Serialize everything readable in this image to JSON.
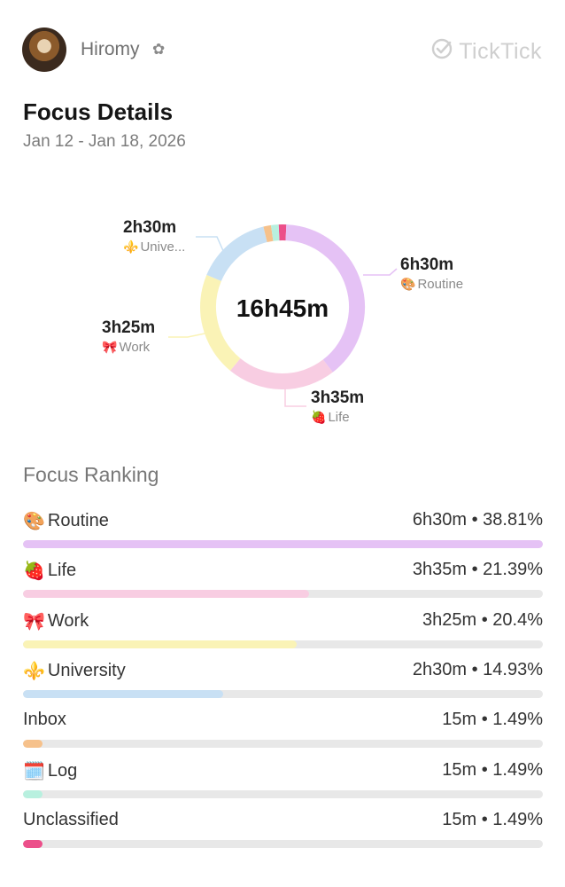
{
  "header": {
    "username": "Hiromy",
    "username_icon": "flower-icon",
    "brand_name": "TickTick",
    "brand_icon": "check-circle-icon"
  },
  "page": {
    "title": "Focus Details",
    "date_range": "Jan 12 - Jan 18, 2026"
  },
  "chart_data": {
    "type": "pie",
    "center_label": "16h45m",
    "series": [
      {
        "name": "Routine",
        "time": "6h30m",
        "emoji": "🎨",
        "percent": 38.81,
        "color": "#e5c2f5"
      },
      {
        "name": "Life",
        "time": "3h35m",
        "emoji": "🍓",
        "percent": 21.39,
        "color": "#f8cde2"
      },
      {
        "name": "Work",
        "time": "3h25m",
        "emoji": "🎀",
        "percent": 20.4,
        "color": "#faf3b6"
      },
      {
        "name": "University",
        "time": "2h30m",
        "emoji": "⚜️",
        "percent": 14.93,
        "color": "#c8e0f4"
      },
      {
        "name": "Inbox",
        "time": "15m",
        "emoji": "",
        "percent": 1.49,
        "color": "#f6c18b"
      },
      {
        "name": "Log",
        "time": "15m",
        "emoji": "🗓️",
        "percent": 1.49,
        "color": "#b8f0df"
      },
      {
        "name": "Unclassified",
        "time": "15m",
        "emoji": "",
        "percent": 1.49,
        "color": "#ec4f8a"
      }
    ],
    "callouts": [
      {
        "time": "6h30m",
        "name": "Routine",
        "emoji": "🎨"
      },
      {
        "time": "3h35m",
        "name": "Life",
        "emoji": "🍓"
      },
      {
        "time": "3h25m",
        "name": "Work",
        "emoji": "🎀"
      },
      {
        "time": "2h30m",
        "name": "Unive...",
        "emoji": "⚜️"
      }
    ]
  },
  "ranking": {
    "title": "Focus Ranking",
    "items": [
      {
        "name": "Routine",
        "emoji": "🎨",
        "value": "6h30m • 38.81%",
        "fraction": 1.0,
        "color": "#e5c2f5"
      },
      {
        "name": "Life",
        "emoji": "🍓",
        "value": "3h35m • 21.39%",
        "fraction": 0.551,
        "color": "#f8cde2"
      },
      {
        "name": "Work",
        "emoji": "🎀",
        "value": "3h25m • 20.4%",
        "fraction": 0.526,
        "color": "#faf3b6"
      },
      {
        "name": "University",
        "emoji": "⚜️",
        "value": "2h30m • 14.93%",
        "fraction": 0.385,
        "color": "#c8e0f4"
      },
      {
        "name": "Inbox",
        "emoji": "",
        "value": "15m • 1.49%",
        "fraction": 0.038,
        "color": "#f6c18b"
      },
      {
        "name": "Log",
        "emoji": "🗓️",
        "value": "15m • 1.49%",
        "fraction": 0.038,
        "color": "#b8f0df"
      },
      {
        "name": "Unclassified",
        "emoji": "",
        "value": "15m • 1.49%",
        "fraction": 0.038,
        "color": "#ec4f8a"
      }
    ]
  }
}
